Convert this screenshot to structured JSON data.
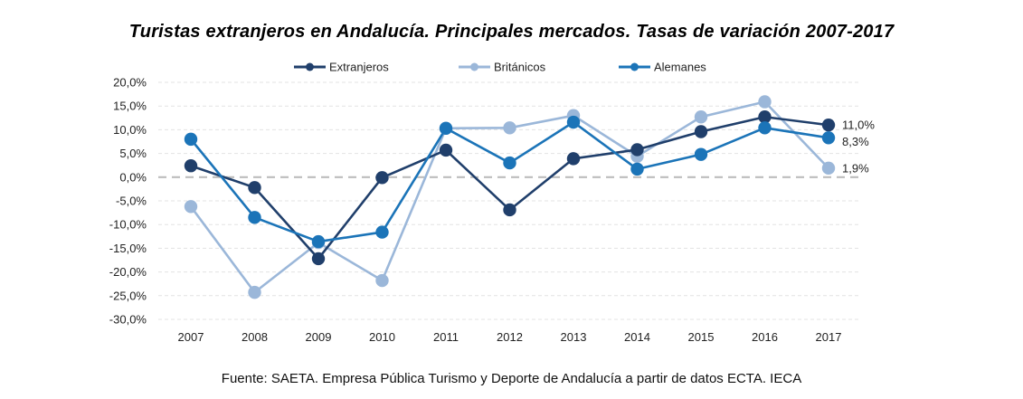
{
  "title": "Turistas extranjeros en Andalucía. Principales mercados. Tasas de variación 2007-2017",
  "source": "Fuente: SAETA. Empresa Pública Turismo y Deporte de Andalucía a partir de datos ECTA. IECA",
  "chart_data": {
    "type": "line",
    "title": "Turistas extranjeros en Andalucía. Principales mercados. Tasas de variación 2007-2017",
    "xlabel": "",
    "ylabel": "",
    "x": [
      "2007",
      "2008",
      "2009",
      "2010",
      "2011",
      "2012",
      "2013",
      "2014",
      "2015",
      "2016",
      "2017"
    ],
    "ylim": [
      -30,
      20
    ],
    "yticks": [
      20,
      15,
      10,
      5,
      0,
      -5,
      -10,
      -15,
      -20,
      -25,
      -30
    ],
    "ytick_labels": [
      "20,0%",
      "15,0%",
      "10,0%",
      "5,0%",
      "0,0%",
      "-5,0%",
      "-10,0%",
      "-15,0%",
      "-20,0%",
      "-25,0%",
      "-30,0%"
    ],
    "grid": true,
    "zero_line": "dashed",
    "legend_position": "top",
    "series": [
      {
        "name": "Extranjeros",
        "color": "#203f6b",
        "values": [
          2.4,
          -2.2,
          -17.2,
          -0.1,
          5.7,
          -6.9,
          3.9,
          5.8,
          9.6,
          12.7,
          11.0
        ],
        "end_label": "11,0%"
      },
      {
        "name": "Británicos",
        "color": "#9bb7d9",
        "values": [
          -6.2,
          -24.3,
          -13.8,
          -21.8,
          10.3,
          10.4,
          13.0,
          4.4,
          12.7,
          15.9,
          1.9
        ],
        "end_label": "1,9%"
      },
      {
        "name": "Alemanes",
        "color": "#1b74b8",
        "values": [
          8.0,
          -8.5,
          -13.6,
          -11.6,
          10.3,
          3.0,
          11.6,
          1.7,
          4.8,
          10.4,
          8.3
        ],
        "end_label": "8,3%"
      }
    ]
  }
}
